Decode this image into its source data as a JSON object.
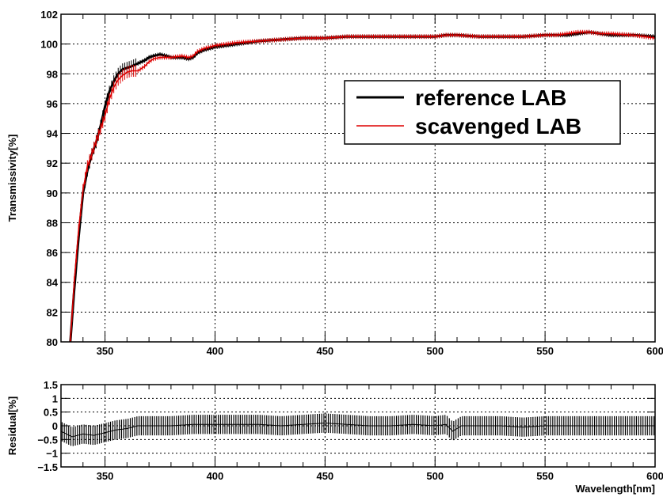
{
  "chart_data": [
    {
      "type": "line",
      "title": "",
      "xlabel": "",
      "ylabel": "Transmissivity[%]",
      "xlim": [
        330,
        600
      ],
      "ylim": [
        80,
        102
      ],
      "x_ticks": [
        350,
        400,
        450,
        500,
        550,
        600
      ],
      "y_ticks": [
        80,
        82,
        84,
        86,
        88,
        90,
        92,
        94,
        96,
        98,
        100,
        102
      ],
      "grid": true,
      "legend_position": "center-right",
      "series": [
        {
          "name": "reference LAB",
          "color": "#000000",
          "x": [
            334,
            336,
            338,
            340,
            342,
            344,
            346,
            348,
            350,
            352,
            354,
            356,
            358,
            360,
            362,
            365,
            368,
            370,
            372,
            375,
            378,
            380,
            385,
            388,
            390,
            392,
            395,
            400,
            410,
            420,
            430,
            440,
            450,
            460,
            470,
            480,
            490,
            500,
            505,
            508,
            510,
            520,
            530,
            540,
            550,
            555,
            560,
            565,
            570,
            575,
            580,
            590,
            600
          ],
          "y": [
            79.5,
            83.5,
            87.0,
            90.0,
            91.5,
            92.6,
            93.4,
            94.5,
            95.8,
            96.8,
            97.5,
            98.0,
            98.3,
            98.4,
            98.5,
            98.7,
            98.9,
            99.1,
            99.2,
            99.3,
            99.2,
            99.1,
            99.1,
            99.0,
            99.1,
            99.4,
            99.6,
            99.8,
            100.0,
            100.2,
            100.3,
            100.4,
            100.4,
            100.5,
            100.5,
            100.5,
            100.5,
            100.5,
            100.6,
            100.6,
            100.6,
            100.5,
            100.5,
            100.5,
            100.6,
            100.6,
            100.6,
            100.7,
            100.8,
            100.7,
            100.6,
            100.6,
            100.5
          ]
        },
        {
          "name": "scavenged LAB",
          "color": "#dd0000",
          "x": [
            334,
            336,
            338,
            340,
            342,
            344,
            346,
            348,
            350,
            352,
            354,
            356,
            358,
            360,
            362,
            365,
            368,
            370,
            372,
            375,
            378,
            380,
            385,
            388,
            390,
            392,
            395,
            400,
            410,
            420,
            430,
            440,
            450,
            460,
            470,
            480,
            490,
            500,
            505,
            508,
            510,
            520,
            530,
            540,
            550,
            555,
            560,
            565,
            570,
            575,
            580,
            590,
            600
          ],
          "y": [
            79.5,
            84.0,
            87.5,
            90.2,
            91.8,
            92.6,
            93.5,
            94.3,
            95.2,
            96.3,
            97.1,
            97.6,
            97.9,
            98.1,
            98.2,
            98.2,
            98.5,
            98.8,
            99.0,
            99.1,
            99.1,
            99.1,
            99.2,
            99.1,
            99.2,
            99.5,
            99.7,
            99.9,
            100.1,
            100.2,
            100.3,
            100.4,
            100.4,
            100.5,
            100.5,
            100.5,
            100.5,
            100.5,
            100.6,
            100.6,
            100.6,
            100.5,
            100.5,
            100.5,
            100.6,
            100.6,
            100.7,
            100.8,
            100.8,
            100.7,
            100.7,
            100.6,
            100.4
          ]
        }
      ]
    },
    {
      "type": "line",
      "title": "",
      "xlabel": "Wavelength[nm]",
      "ylabel": "Residual[%]",
      "xlim": [
        330,
        600
      ],
      "ylim": [
        -1.5,
        1.5
      ],
      "x_ticks": [
        350,
        400,
        450,
        500,
        550,
        600
      ],
      "y_ticks": [
        -1.5,
        -1,
        -0.5,
        0,
        0.5,
        1,
        1.5
      ],
      "y_tick_labels": [
        "−1.5",
        "−1",
        "−0.5",
        "0",
        "0.5",
        "1",
        "1.5"
      ],
      "grid": true,
      "series": [
        {
          "x": [
            330,
            335,
            340,
            345,
            350,
            355,
            360,
            365,
            370,
            380,
            390,
            400,
            410,
            420,
            430,
            440,
            450,
            460,
            470,
            480,
            490,
            500,
            505,
            508,
            512,
            520,
            530,
            540,
            550,
            560,
            570,
            580,
            590,
            600
          ],
          "y": [
            -0.2,
            -0.4,
            -0.3,
            -0.35,
            -0.25,
            -0.15,
            -0.1,
            0.0,
            0.0,
            0.0,
            0.05,
            0.05,
            0.05,
            0.05,
            0.0,
            0.05,
            0.1,
            0.05,
            0.0,
            0.0,
            0.05,
            0.0,
            0.05,
            -0.2,
            0.0,
            0.0,
            0.0,
            -0.05,
            0.0,
            0.0,
            0.0,
            0.0,
            0.0,
            0.0
          ],
          "error": 0.35,
          "color": "#000000"
        }
      ]
    }
  ]
}
